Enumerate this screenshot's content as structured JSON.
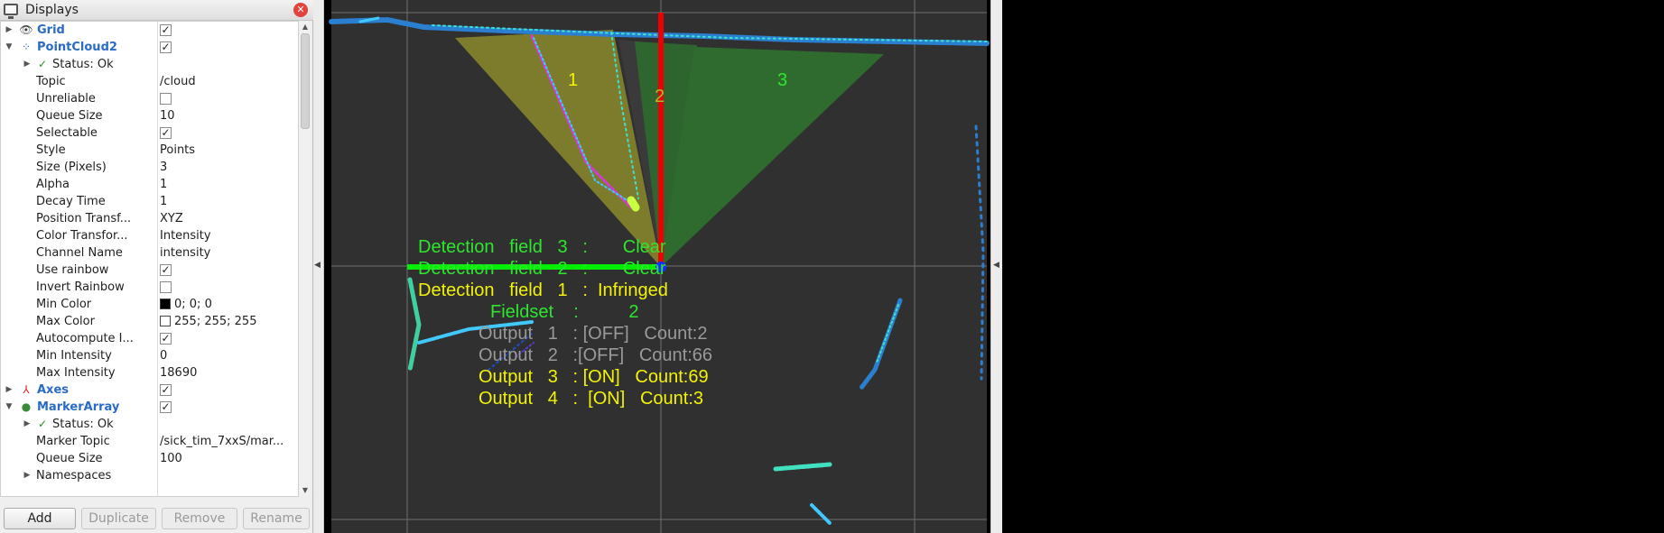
{
  "panel": {
    "title": "Displays",
    "buttons": {
      "add": "Add",
      "duplicate": "Duplicate",
      "remove": "Remove",
      "rename": "Rename"
    }
  },
  "tree": [
    {
      "type": "group",
      "label": "Grid",
      "icon": "grid-icon",
      "checked": true
    },
    {
      "type": "group",
      "label": "PointCloud2",
      "icon": "pointcloud-icon",
      "checked": true,
      "expanded": true
    },
    {
      "type": "status",
      "label": "Status: Ok"
    },
    {
      "type": "prop",
      "label": "Topic",
      "value": "/cloud"
    },
    {
      "type": "prop",
      "label": "Unreliable",
      "checked": false
    },
    {
      "type": "prop",
      "label": "Queue Size",
      "value": "10"
    },
    {
      "type": "prop",
      "label": "Selectable",
      "checked": true
    },
    {
      "type": "prop",
      "label": "Style",
      "value": "Points"
    },
    {
      "type": "prop",
      "label": "Size (Pixels)",
      "value": "3"
    },
    {
      "type": "prop",
      "label": "Alpha",
      "value": "1"
    },
    {
      "type": "prop",
      "label": "Decay Time",
      "value": "1"
    },
    {
      "type": "prop",
      "label": "Position Transf...",
      "value": "XYZ"
    },
    {
      "type": "prop",
      "label": "Color Transfor...",
      "value": "Intensity"
    },
    {
      "type": "prop",
      "label": "Channel Name",
      "value": "intensity"
    },
    {
      "type": "prop",
      "label": "Use rainbow",
      "checked": true
    },
    {
      "type": "prop",
      "label": "Invert Rainbow",
      "checked": false
    },
    {
      "type": "prop",
      "label": "Min Color",
      "value": "0; 0; 0",
      "swatch": "#000000"
    },
    {
      "type": "prop",
      "label": "Max Color",
      "value": "255; 255; 255",
      "swatch": "#ffffff"
    },
    {
      "type": "prop",
      "label": "Autocompute I...",
      "checked": true
    },
    {
      "type": "prop",
      "label": "Min Intensity",
      "value": "0"
    },
    {
      "type": "prop",
      "label": "Max Intensity",
      "value": "18690"
    },
    {
      "type": "group",
      "label": "Axes",
      "icon": "axes-icon",
      "checked": true
    },
    {
      "type": "group",
      "label": "MarkerArray",
      "icon": "markerarray-icon",
      "checked": true,
      "expanded": true
    },
    {
      "type": "status",
      "label": "Status: Ok"
    },
    {
      "type": "prop",
      "label": "Marker Topic",
      "value": "/sick_tim_7xxS/mar..."
    },
    {
      "type": "prop",
      "label": "Queue Size",
      "value": "100"
    },
    {
      "type": "subgroup",
      "label": "Namespaces"
    }
  ],
  "view": {
    "fields": {
      "f1": "1",
      "f2": "2",
      "f3": "3"
    },
    "overlay": [
      {
        "text": "Detection   field   3   :       Clear",
        "color": "green"
      },
      {
        "text": "Detection   field   2   :       Clear",
        "color": "green"
      },
      {
        "text": "Detection   field   1   :  Infringed",
        "color": "yellow"
      },
      {
        "text": "Fieldset    :          2",
        "color": "green"
      },
      {
        "text": "Output   1   : [OFF]   Count:2",
        "color": "gray"
      },
      {
        "text": "Output   2   :[OFF]   Count:66",
        "color": "gray"
      },
      {
        "text": "Output   3   : [ON]   Count:69",
        "color": "yellow"
      },
      {
        "text": "Output   4   :  [ON]   Count:3",
        "color": "yellow"
      }
    ]
  },
  "colors": {
    "field_yellow": "#8a8a2c",
    "field_green": "#2f6b2f",
    "axis_red": "#ee0000",
    "axis_green": "#00ee00",
    "accent_blue": "#2a6bc5"
  }
}
